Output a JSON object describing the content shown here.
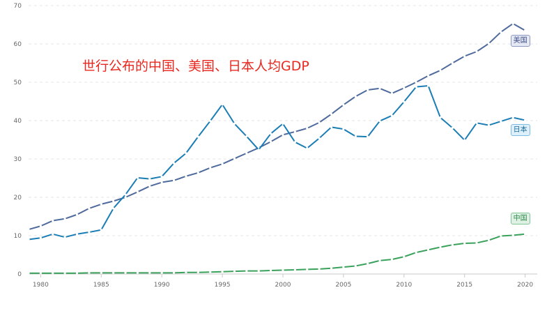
{
  "chart_data": {
    "type": "line",
    "annotation": "世行公布的中国、美国、日本人均GDP",
    "ylim": [
      0,
      70
    ],
    "yticks": [
      0,
      10,
      20,
      30,
      40,
      50,
      60,
      70
    ],
    "xlim": [
      1979,
      2021
    ],
    "xticks": [
      1980,
      1985,
      1990,
      1995,
      2000,
      2005,
      2010,
      2015,
      2020
    ],
    "grid": "horizontal-dashed",
    "x": [
      1979,
      1980,
      1981,
      1982,
      1983,
      1984,
      1985,
      1986,
      1987,
      1988,
      1989,
      1990,
      1991,
      1992,
      1993,
      1994,
      1995,
      1996,
      1997,
      1998,
      1999,
      2000,
      2001,
      2002,
      2003,
      2004,
      2005,
      2006,
      2007,
      2008,
      2009,
      2010,
      2011,
      2012,
      2013,
      2014,
      2015,
      2016,
      2017,
      2018,
      2019,
      2020
    ],
    "series": [
      {
        "name": "美国",
        "color": "#4e6a9c",
        "values": [
          11.6,
          12.5,
          13.9,
          14.4,
          15.5,
          17.1,
          18.2,
          19.0,
          20.0,
          21.4,
          22.9,
          23.9,
          24.4,
          25.5,
          26.4,
          27.7,
          28.7,
          30.1,
          31.5,
          32.9,
          34.5,
          36.3,
          37.1,
          38.0,
          39.5,
          41.7,
          44.1,
          46.3,
          48.0,
          48.4,
          47.1,
          48.5,
          50.0,
          51.7,
          53.1,
          55.0,
          56.8,
          58.0,
          60.1,
          63.1,
          65.3,
          63.5
        ]
      },
      {
        "name": "日本",
        "color": "#1a7db5",
        "values": [
          9.0,
          9.4,
          10.4,
          9.6,
          10.4,
          10.9,
          11.5,
          17.1,
          20.7,
          25.1,
          24.8,
          25.4,
          28.9,
          31.5,
          35.8,
          39.9,
          44.2,
          39.2,
          35.9,
          32.4,
          36.6,
          39.2,
          34.4,
          32.8,
          35.4,
          38.3,
          37.8,
          35.9,
          35.8,
          39.9,
          41.3,
          44.9,
          48.8,
          49.1,
          40.8,
          38.1,
          34.9,
          39.4,
          38.8,
          39.8,
          40.8,
          40.1
        ]
      },
      {
        "name": "中国",
        "color": "#3aa15b",
        "values": [
          0.2,
          0.2,
          0.2,
          0.2,
          0.2,
          0.3,
          0.3,
          0.3,
          0.3,
          0.3,
          0.3,
          0.3,
          0.3,
          0.4,
          0.4,
          0.5,
          0.6,
          0.7,
          0.8,
          0.8,
          0.9,
          1.0,
          1.1,
          1.2,
          1.3,
          1.5,
          1.8,
          2.1,
          2.7,
          3.5,
          3.8,
          4.5,
          5.6,
          6.3,
          7.0,
          7.6,
          8.0,
          8.1,
          8.8,
          9.9,
          10.1,
          10.4
        ]
      }
    ]
  }
}
